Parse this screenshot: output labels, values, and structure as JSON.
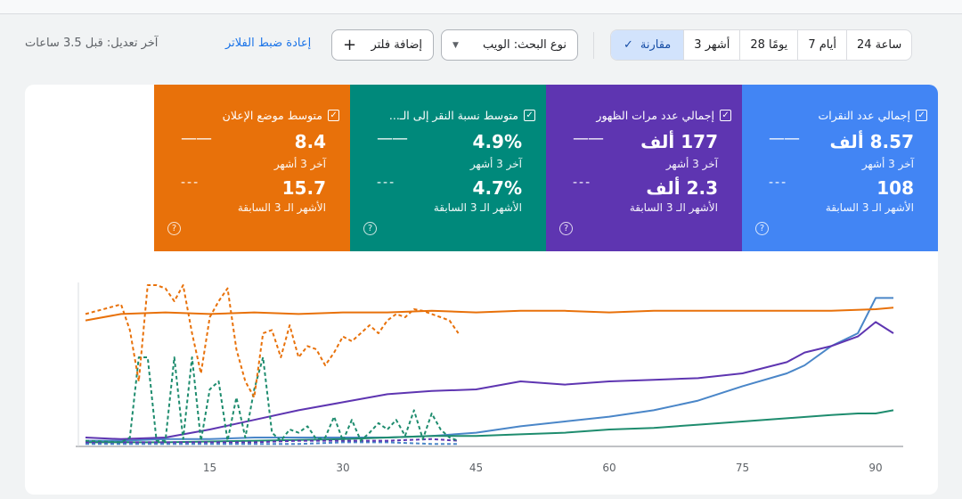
{
  "toolbar": {
    "ranges": [
      {
        "label": "24 ساعة",
        "active": false
      },
      {
        "label": "7 أيام",
        "active": false
      },
      {
        "label": "28 يومًا",
        "active": false
      },
      {
        "label": "3 أشهر",
        "active": false
      },
      {
        "label": "مقارنة",
        "active": true
      }
    ],
    "search_type": "نوع البحث: الويب",
    "add_filter": "إضافة فلتر",
    "reset_filters": "إعادة ضبط الفلاتر",
    "last_updated": "آخر تعديل: قبل 3.5 ساعات"
  },
  "cards": [
    {
      "title": "إجمالي عدد النقرات",
      "current": "8.57 ألف",
      "current_period": "آخر 3 أشهر",
      "previous": "108",
      "previous_period": "الأشهر الـ 3 السابقة",
      "color": "#4285f4"
    },
    {
      "title": "إجمالي عدد مرات الظهور",
      "current": "177 ألف",
      "current_period": "آخر 3 أشهر",
      "previous": "2.3 ألف",
      "previous_period": "الأشهر الـ 3 السابقة",
      "color": "#5e35b1"
    },
    {
      "title": "متوسط نسبة النقر إلى الـ...",
      "current": "4.9%",
      "current_period": "آخر 3 أشهر",
      "previous": "4.7%",
      "previous_period": "الأشهر الـ 3 السابقة",
      "color": "#00897b"
    },
    {
      "title": "متوسط موضع الإعلان",
      "current": "8.4",
      "current_period": "آخر 3 أشهر",
      "previous": "15.7",
      "previous_period": "الأشهر الـ 3 السابقة",
      "color": "#e8710a"
    }
  ],
  "chart_data": {
    "type": "line",
    "x_ticks": [
      15,
      30,
      45,
      60,
      75,
      90
    ],
    "xlim": [
      1,
      92
    ],
    "ylim": [
      0,
      100
    ],
    "series": [
      {
        "metric": "clicks",
        "period": "current",
        "color": "#4a86c8",
        "style": "solid",
        "note": "normalized 0-100 view",
        "x": [
          1,
          5,
          10,
          15,
          20,
          25,
          30,
          35,
          40,
          45,
          50,
          55,
          60,
          65,
          70,
          75,
          80,
          82,
          85,
          88,
          90,
          92
        ],
        "y": [
          3,
          3,
          4,
          4,
          5,
          5,
          5,
          5,
          6,
          8,
          12,
          15,
          18,
          22,
          28,
          37,
          45,
          50,
          62,
          70,
          92,
          92
        ]
      },
      {
        "metric": "impressions",
        "period": "current",
        "color": "#5e35b1",
        "style": "solid",
        "x": [
          1,
          5,
          10,
          15,
          20,
          25,
          30,
          35,
          40,
          45,
          50,
          55,
          60,
          65,
          70,
          75,
          80,
          82,
          85,
          88,
          90,
          92
        ],
        "y": [
          5,
          4,
          5,
          10,
          16,
          22,
          27,
          32,
          34,
          35,
          40,
          38,
          40,
          41,
          42,
          45,
          52,
          58,
          62,
          68,
          77,
          70
        ]
      },
      {
        "metric": "ctr",
        "period": "current",
        "color": "#1e8c6e",
        "style": "solid",
        "x": [
          1,
          10,
          20,
          30,
          40,
          45,
          50,
          55,
          60,
          65,
          70,
          75,
          80,
          85,
          88,
          90,
          92
        ],
        "y": [
          2,
          2,
          3,
          4,
          6,
          6,
          7,
          8,
          10,
          11,
          13,
          15,
          17,
          19,
          20,
          20,
          22
        ]
      },
      {
        "metric": "position",
        "period": "current",
        "color": "#e8710a",
        "style": "solid",
        "x": [
          1,
          5,
          10,
          15,
          20,
          25,
          30,
          35,
          40,
          45,
          50,
          55,
          60,
          65,
          70,
          75,
          80,
          85,
          90,
          92
        ],
        "y": [
          78,
          82,
          83,
          82,
          83,
          82,
          83,
          83,
          84,
          83,
          84,
          84,
          83,
          84,
          84,
          84,
          84,
          84,
          85,
          86
        ]
      },
      {
        "metric": "clicks",
        "period": "previous",
        "color": "#4a86c8",
        "style": "dashed",
        "x": [
          1,
          5,
          10,
          15,
          20,
          25,
          30,
          35,
          40,
          43
        ],
        "y": [
          1,
          1,
          1,
          1,
          1,
          1,
          2,
          2,
          1,
          1
        ]
      },
      {
        "metric": "impressions",
        "period": "previous",
        "color": "#5e35b1",
        "style": "dashed",
        "x": [
          1,
          5,
          10,
          15,
          20,
          25,
          30,
          35,
          40,
          43
        ],
        "y": [
          2,
          2,
          2,
          2,
          2,
          3,
          3,
          3,
          4,
          3
        ]
      },
      {
        "metric": "ctr",
        "period": "previous",
        "color": "#1e8c6e",
        "style": "dashed",
        "x": [
          1,
          5,
          6,
          7,
          8,
          9,
          10,
          11,
          12,
          13,
          14,
          15,
          16,
          17,
          18,
          19,
          20,
          21,
          22,
          23,
          24,
          25,
          26,
          27,
          28,
          29,
          30,
          31,
          32,
          33,
          34,
          35,
          36,
          37,
          38,
          39,
          40,
          41,
          42,
          43
        ],
        "y": [
          3,
          2,
          5,
          55,
          55,
          3,
          3,
          55,
          4,
          55,
          3,
          35,
          40,
          3,
          30,
          5,
          35,
          55,
          8,
          3,
          10,
          8,
          12,
          4,
          5,
          18,
          3,
          16,
          3,
          8,
          14,
          10,
          16,
          6,
          22,
          4,
          20,
          10,
          5,
          3
        ]
      },
      {
        "metric": "position",
        "period": "previous",
        "color": "#e8710a",
        "style": "dashed",
        "x": [
          1,
          5,
          6,
          7,
          8,
          9,
          10,
          11,
          12,
          13,
          14,
          15,
          16,
          17,
          18,
          19,
          20,
          21,
          22,
          23,
          24,
          25,
          26,
          27,
          28,
          29,
          30,
          31,
          32,
          33,
          34,
          35,
          36,
          37,
          38,
          39,
          40,
          41,
          42,
          43
        ],
        "y": [
          82,
          88,
          72,
          40,
          100,
          100,
          98,
          90,
          100,
          70,
          45,
          80,
          90,
          98,
          60,
          40,
          30,
          70,
          72,
          55,
          75,
          55,
          62,
          60,
          50,
          58,
          68,
          65,
          70,
          75,
          70,
          78,
          82,
          80,
          85,
          84,
          82,
          80,
          78,
          70
        ]
      }
    ]
  }
}
